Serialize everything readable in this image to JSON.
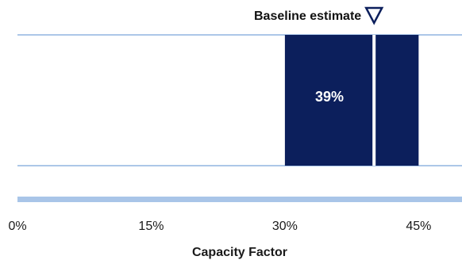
{
  "chart_data": {
    "type": "bar",
    "orientation": "horizontal",
    "xlabel": "Capacity Factor",
    "xlim": [
      0,
      0.5
    ],
    "xticks": [
      0,
      0.15,
      0.3,
      0.45
    ],
    "xtick_labels": [
      "0%",
      "15%",
      "30%",
      "45%"
    ],
    "range_bar": {
      "start": 0.3,
      "end": 0.45,
      "label": "39%"
    },
    "baseline": {
      "value": 0.4,
      "label": "Baseline estimate",
      "marker": "down-triangle-outline"
    },
    "colors": {
      "bar": "#0c1f5c",
      "gridline": "#5a8fd0",
      "axis_band": "#a9c5e8",
      "marker": "#0c1f5c"
    },
    "grid": true
  }
}
